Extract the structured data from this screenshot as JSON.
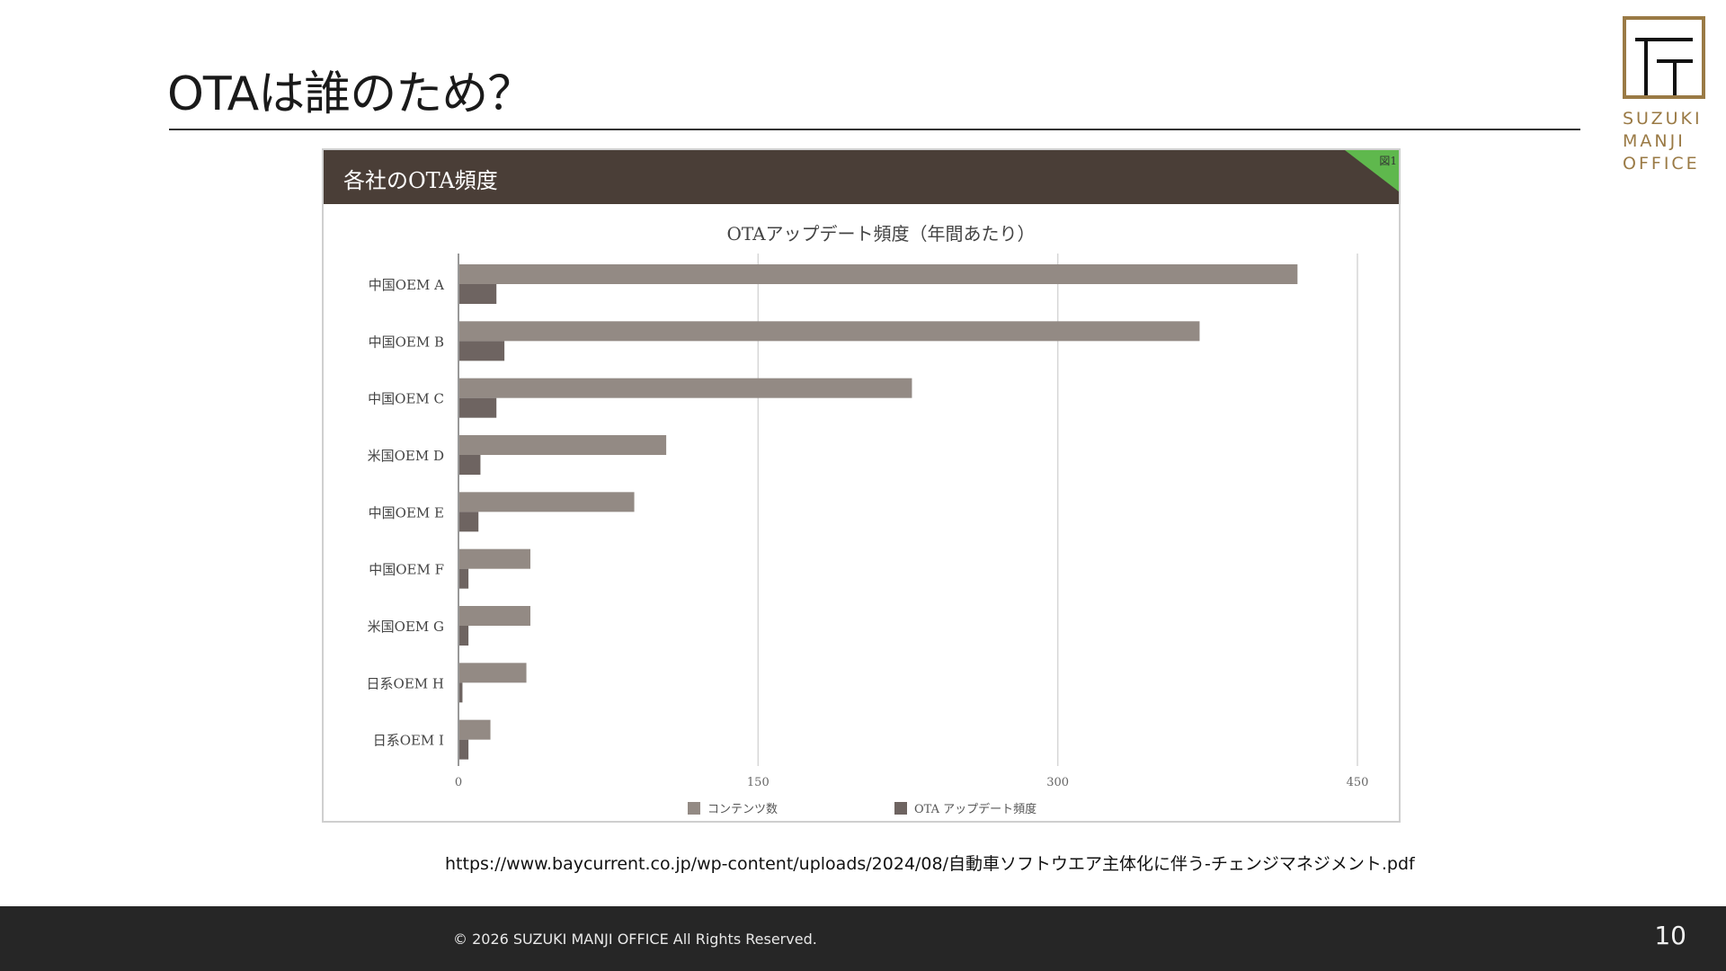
{
  "slide": {
    "title": "OTAは誰のため？",
    "source_url": "https://www.baycurrent.co.jp/wp-content/uploads/2024/08/自動車ソフトウエア主体化に伴う-チェンジマネジメント.pdf"
  },
  "logo": {
    "line1": "SUZUKI",
    "line2": "MANJI",
    "line3": "OFFICE",
    "color": "#9a7a45"
  },
  "figure": {
    "header_title": "各社のOTA頻度",
    "tag": "図1",
    "header_color": "#4a3e37",
    "tag_color": "#5fb84d"
  },
  "chart_data": {
    "type": "bar",
    "orientation": "horizontal",
    "title": "OTAアップデート頻度（年間あたり）",
    "categories": [
      "中国OEM A",
      "中国OEM B",
      "中国OEM C",
      "米国OEM D",
      "中国OEM E",
      "中国OEM F",
      "米国OEM G",
      "日系OEM H",
      "日系OEM I"
    ],
    "series": [
      {
        "name": "コンテンツ数",
        "color": "#938a84",
        "values": [
          420,
          371,
          227,
          104,
          88,
          36,
          36,
          34,
          16
        ]
      },
      {
        "name": "OTA アップデート頻度",
        "color": "#6e6461",
        "values": [
          19,
          23,
          19,
          11,
          10,
          5,
          5,
          2,
          5
        ]
      }
    ],
    "xlim": [
      0,
      450
    ],
    "xticks": [
      0,
      150,
      300,
      450
    ],
    "grid": true,
    "legend_position": "bottom"
  },
  "footer": {
    "copyright": "© 2026  SUZUKI MANJI OFFICE All Rights Reserved.",
    "page_number": "10"
  }
}
